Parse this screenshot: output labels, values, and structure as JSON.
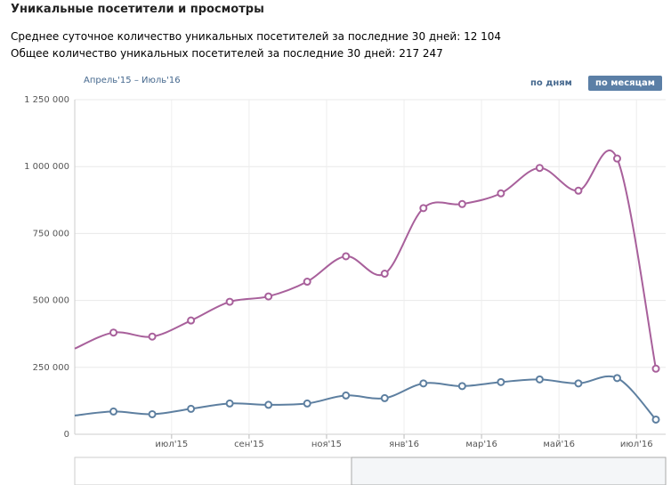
{
  "header": {
    "title": "Уникальные посетители и просмотры",
    "line1": "Среднее суточное количество уникальных посетителей за последние 30 дней: 12 104",
    "line2": "Общее количество уникальных посетителей за последние 30 дней: 217 247"
  },
  "controls": {
    "range": "Апрель'15 – Июль'16",
    "by_days": "по дням",
    "by_months": "по месяцам"
  },
  "chart_data": {
    "type": "line",
    "categories": [
      null,
      null,
      null,
      "июл'15",
      null,
      "сен'15",
      null,
      "ноя'15",
      null,
      "янв'16",
      null,
      "мар'16",
      null,
      "май'16",
      null,
      "июл'16"
    ],
    "series": [
      {
        "name": null,
        "color": "#a8609b",
        "values": [
          320000,
          380000,
          365000,
          425000,
          495000,
          515000,
          570000,
          665000,
          600000,
          845000,
          860000,
          900000,
          995000,
          910000,
          1030000,
          245000
        ]
      },
      {
        "name": null,
        "color": "#5d7fa0",
        "values": [
          70000,
          85000,
          75000,
          95000,
          115000,
          110000,
          115000,
          145000,
          135000,
          190000,
          180000,
          195000,
          205000,
          190000,
          210000,
          55000
        ]
      }
    ],
    "ylim": [
      0,
      1250000
    ],
    "yticks": [
      0,
      {
        "value": 250000,
        "label": "250 000"
      },
      {
        "value": 500000,
        "label": "500 000"
      },
      {
        "value": 750000,
        "label": "750 000"
      },
      {
        "value": 1000000,
        "label": "1 000 000"
      },
      {
        "value": 1250000,
        "label": "1 250 000"
      }
    ],
    "grid": true
  }
}
